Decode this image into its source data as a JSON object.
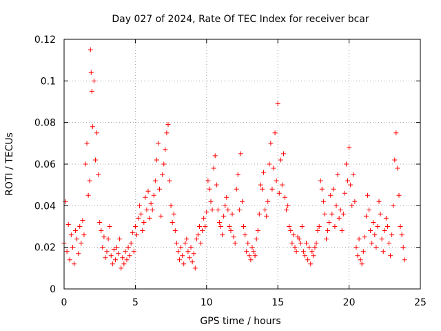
{
  "chart_data": {
    "type": "scatter",
    "title": "Day 027 of 2024, Rate Of TEC Index for receiver bcar",
    "xlabel": "GPS time / hours",
    "ylabel": "ROTI / TECUs",
    "xlim": [
      0,
      25
    ],
    "ylim": [
      0,
      0.12
    ],
    "grid": true,
    "marker": "+",
    "x_ticks": [
      0,
      5,
      10,
      15,
      20,
      25
    ],
    "y_ticks": [
      0,
      0.02,
      0.04,
      0.06,
      0.08,
      0.1,
      0.12
    ],
    "x_tick_labels": [
      "0",
      "5",
      "10",
      "15",
      "20",
      "25"
    ],
    "y_tick_labels": [
      "0",
      "0.02",
      "0.04",
      "0.06",
      "0.08",
      "0.1",
      "0.12"
    ],
    "series": [
      {
        "name": "ROTI",
        "color": "#ff0000",
        "x": [
          0.0,
          0.1,
          0.2,
          0.3,
          0.4,
          0.5,
          0.6,
          0.7,
          0.8,
          0.9,
          1.0,
          1.1,
          1.2,
          1.3,
          1.4,
          1.5,
          1.6,
          1.7,
          1.8,
          1.85,
          1.9,
          1.95,
          2.0,
          2.1,
          2.2,
          2.3,
          2.4,
          2.5,
          2.6,
          2.7,
          2.8,
          2.9,
          3.0,
          3.1,
          3.2,
          3.3,
          3.4,
          3.5,
          3.6,
          3.7,
          3.8,
          3.9,
          4.0,
          4.1,
          4.2,
          4.3,
          4.4,
          4.5,
          4.6,
          4.7,
          4.8,
          4.9,
          5.0,
          5.1,
          5.2,
          5.3,
          5.4,
          5.5,
          5.6,
          5.7,
          5.8,
          5.9,
          6.0,
          6.1,
          6.2,
          6.3,
          6.4,
          6.5,
          6.6,
          6.7,
          6.8,
          6.9,
          7.0,
          7.1,
          7.2,
          7.3,
          7.4,
          7.5,
          7.6,
          7.7,
          7.8,
          7.9,
          8.0,
          8.1,
          8.2,
          8.3,
          8.4,
          8.5,
          8.6,
          8.7,
          8.8,
          8.9,
          9.0,
          9.1,
          9.2,
          9.3,
          9.4,
          9.5,
          9.6,
          9.7,
          9.8,
          9.9,
          10.0,
          10.1,
          10.2,
          10.3,
          10.4,
          10.5,
          10.6,
          10.7,
          10.8,
          10.9,
          11.0,
          11.1,
          11.2,
          11.3,
          11.4,
          11.5,
          11.6,
          11.7,
          11.8,
          11.9,
          12.0,
          12.1,
          12.2,
          12.3,
          12.4,
          12.5,
          12.6,
          12.7,
          12.8,
          12.9,
          13.0,
          13.1,
          13.2,
          13.3,
          13.4,
          13.5,
          13.6,
          13.7,
          13.8,
          13.9,
          14.0,
          14.1,
          14.2,
          14.3,
          14.4,
          14.5,
          14.6,
          14.7,
          14.8,
          14.9,
          15.0,
          15.1,
          15.2,
          15.3,
          15.4,
          15.5,
          15.6,
          15.7,
          15.8,
          15.9,
          16.0,
          16.1,
          16.2,
          16.3,
          16.4,
          16.5,
          16.6,
          16.7,
          16.8,
          16.9,
          17.0,
          17.1,
          17.2,
          17.3,
          17.4,
          17.5,
          17.6,
          17.7,
          17.8,
          17.9,
          18.0,
          18.1,
          18.2,
          18.3,
          18.4,
          18.5,
          18.6,
          18.7,
          18.8,
          18.9,
          19.0,
          19.1,
          19.2,
          19.3,
          19.4,
          19.5,
          19.6,
          19.7,
          19.8,
          19.9,
          20.0,
          20.1,
          20.2,
          20.3,
          20.4,
          20.5,
          20.6,
          20.7,
          20.8,
          20.9,
          21.0,
          21.1,
          21.2,
          21.3,
          21.4,
          21.5,
          21.6,
          21.7,
          21.8,
          21.9,
          22.0,
          22.1,
          22.2,
          22.3,
          22.4,
          22.5,
          22.6,
          22.7,
          22.8,
          22.9,
          23.0,
          23.1,
          23.2,
          23.3,
          23.4,
          23.5,
          23.6,
          23.7,
          23.8,
          23.9
        ],
        "y": [
          0.022,
          0.042,
          0.018,
          0.031,
          0.014,
          0.026,
          0.02,
          0.012,
          0.028,
          0.024,
          0.017,
          0.03,
          0.022,
          0.033,
          0.026,
          0.06,
          0.07,
          0.045,
          0.052,
          0.115,
          0.104,
          0.095,
          0.078,
          0.1,
          0.062,
          0.075,
          0.055,
          0.032,
          0.028,
          0.02,
          0.025,
          0.015,
          0.018,
          0.024,
          0.03,
          0.016,
          0.012,
          0.019,
          0.014,
          0.02,
          0.017,
          0.024,
          0.01,
          0.015,
          0.012,
          0.018,
          0.014,
          0.02,
          0.016,
          0.022,
          0.027,
          0.018,
          0.03,
          0.026,
          0.034,
          0.04,
          0.036,
          0.028,
          0.032,
          0.044,
          0.038,
          0.047,
          0.034,
          0.041,
          0.038,
          0.045,
          0.052,
          0.062,
          0.07,
          0.048,
          0.035,
          0.055,
          0.06,
          0.067,
          0.075,
          0.079,
          0.052,
          0.04,
          0.032,
          0.036,
          0.028,
          0.022,
          0.018,
          0.014,
          0.02,
          0.016,
          0.012,
          0.022,
          0.024,
          0.018,
          0.015,
          0.02,
          0.013,
          0.017,
          0.01,
          0.024,
          0.026,
          0.03,
          0.022,
          0.028,
          0.034,
          0.03,
          0.037,
          0.052,
          0.048,
          0.042,
          0.038,
          0.058,
          0.064,
          0.05,
          0.038,
          0.032,
          0.03,
          0.026,
          0.035,
          0.04,
          0.044,
          0.038,
          0.03,
          0.028,
          0.036,
          0.025,
          0.022,
          0.048,
          0.055,
          0.038,
          0.065,
          0.042,
          0.03,
          0.026,
          0.018,
          0.022,
          0.016,
          0.014,
          0.02,
          0.018,
          0.016,
          0.024,
          0.028,
          0.036,
          0.05,
          0.048,
          0.056,
          0.038,
          0.035,
          0.042,
          0.06,
          0.07,
          0.048,
          0.058,
          0.075,
          0.052,
          0.089,
          0.046,
          0.062,
          0.05,
          0.065,
          0.044,
          0.038,
          0.04,
          0.03,
          0.028,
          0.022,
          0.026,
          0.02,
          0.018,
          0.025,
          0.024,
          0.022,
          0.03,
          0.018,
          0.016,
          0.022,
          0.014,
          0.02,
          0.012,
          0.018,
          0.016,
          0.02,
          0.022,
          0.028,
          0.03,
          0.052,
          0.048,
          0.042,
          0.036,
          0.024,
          0.028,
          0.032,
          0.045,
          0.036,
          0.048,
          0.03,
          0.04,
          0.055,
          0.034,
          0.038,
          0.028,
          0.036,
          0.046,
          0.06,
          0.052,
          0.068,
          0.05,
          0.04,
          0.055,
          0.042,
          0.02,
          0.016,
          0.024,
          0.014,
          0.012,
          0.018,
          0.025,
          0.035,
          0.045,
          0.038,
          0.028,
          0.022,
          0.032,
          0.026,
          0.02,
          0.03,
          0.042,
          0.036,
          0.024,
          0.018,
          0.028,
          0.034,
          0.03,
          0.022,
          0.016,
          0.026,
          0.04,
          0.062,
          0.075,
          0.058,
          0.045,
          0.03,
          0.026,
          0.02,
          0.014
        ]
      }
    ]
  }
}
